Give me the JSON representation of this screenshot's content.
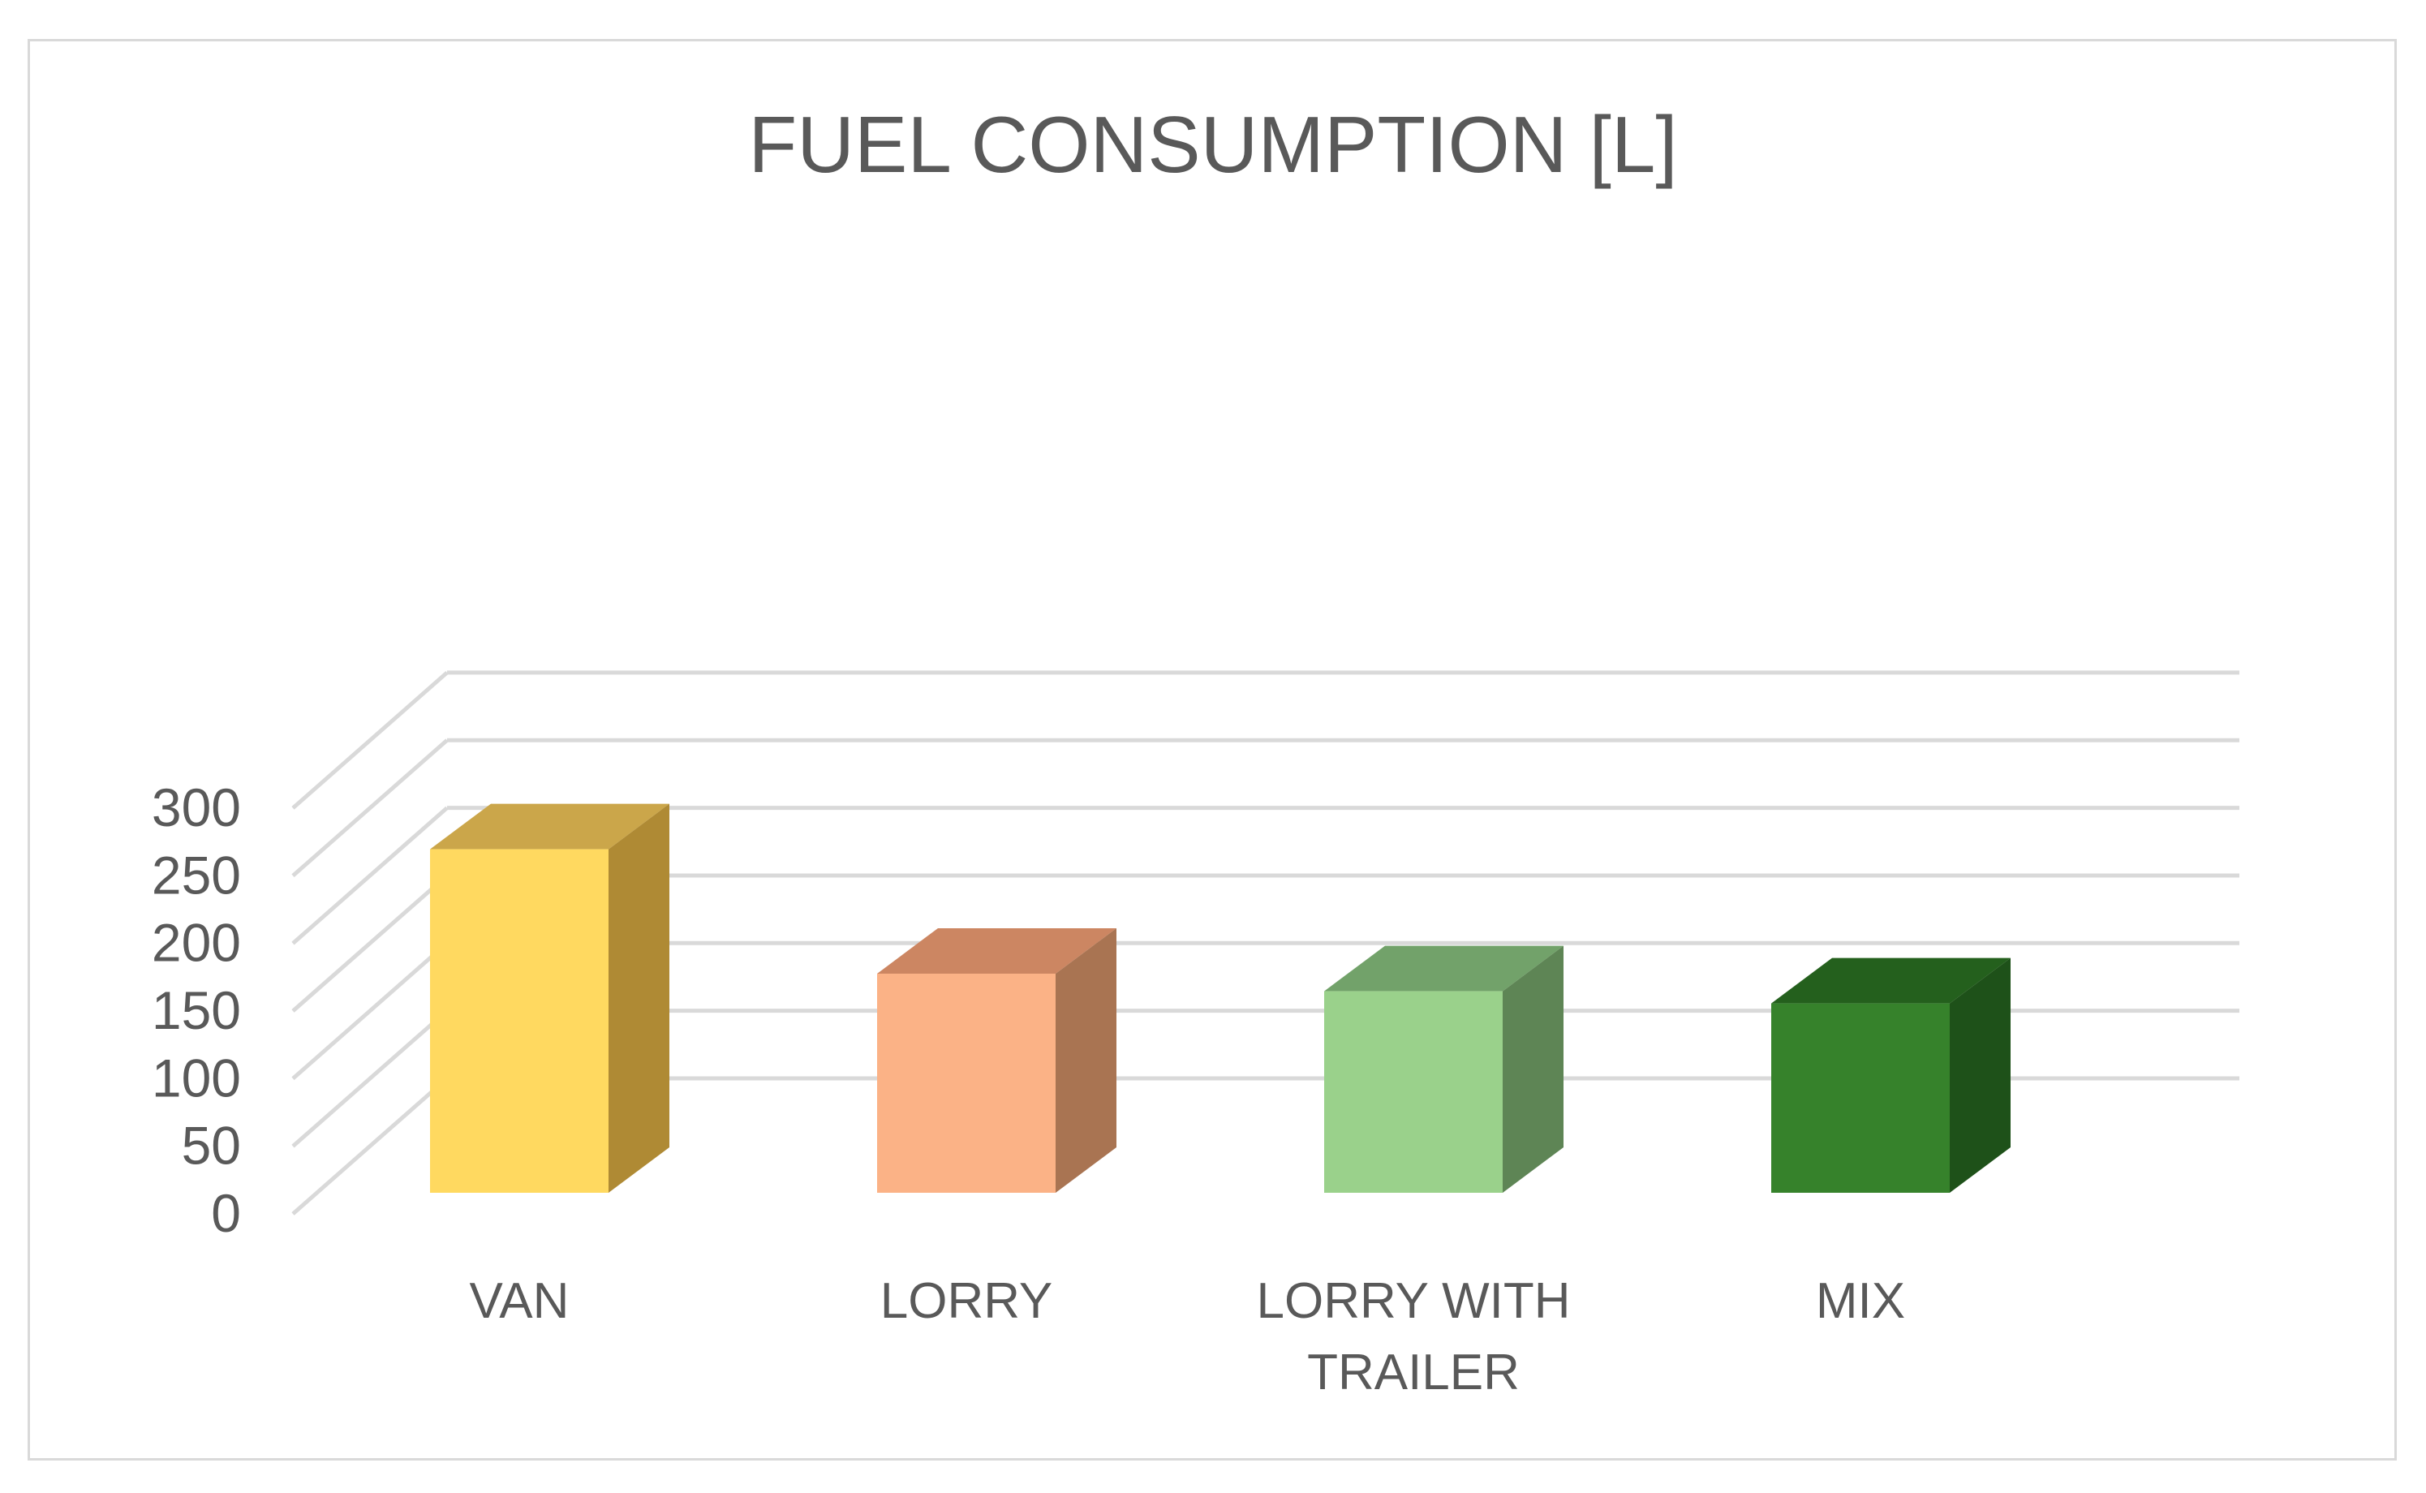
{
  "chart_data": {
    "type": "bar",
    "style": "3d-column",
    "title": "FUEL CONSUMPTION [L]",
    "xlabel": "",
    "ylabel": "",
    "categories": [
      {
        "lines": [
          "VAN"
        ]
      },
      {
        "lines": [
          "LORRY"
        ]
      },
      {
        "lines": [
          "LORRY WITH",
          "TRAILER"
        ]
      },
      {
        "lines": [
          "MIX"
        ]
      }
    ],
    "values": [
      254,
      162,
      149,
      140
    ],
    "ylim": [
      0,
      300
    ],
    "yticks": [
      "0",
      "50",
      "100",
      "150",
      "200",
      "250",
      "300"
    ],
    "grid": true,
    "legend": "none",
    "colors": [
      {
        "front": "#FFD960",
        "side": "#AF8A34",
        "top": "#CBA64A"
      },
      {
        "front": "#FBB286",
        "side": "#A97452",
        "top": "#CC8662"
      },
      {
        "front": "#9AD18B",
        "side": "#5E8555",
        "top": "#72A26A"
      },
      {
        "front": "#36822B",
        "side": "#1E5119",
        "top": "#24601D"
      }
    ],
    "grid_color": "#d9d9d9",
    "text_color": "#595959"
  }
}
